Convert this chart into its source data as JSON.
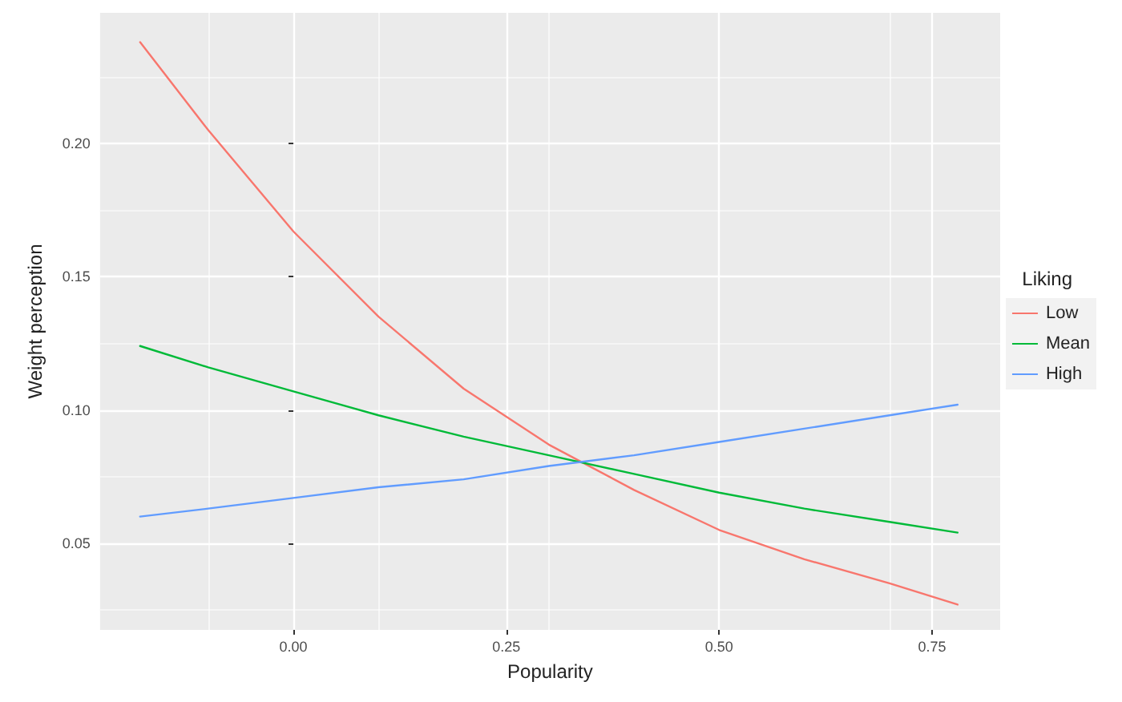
{
  "chart_data": {
    "type": "line",
    "xlabel": "Popularity",
    "ylabel": "Weight perception",
    "legend_title": "Liking",
    "legend": "right",
    "grid": true,
    "marker": "none",
    "line_style": "solid",
    "x": [
      -0.18,
      -0.1,
      0,
      0.1,
      0.2,
      0.3,
      0.4,
      0.5,
      0.6,
      0.7,
      0.78
    ],
    "xlim": [
      -0.227,
      0.83
    ],
    "ylim": [
      0.0175,
      0.249
    ],
    "xticks": [
      {
        "value": 0,
        "label": "0.00"
      },
      {
        "value": 0.25,
        "label": "0.25"
      },
      {
        "value": 0.5,
        "label": "0.50"
      },
      {
        "value": 0.75,
        "label": "0.75"
      }
    ],
    "yticks": [
      {
        "value": 0.05,
        "label": "0.05"
      },
      {
        "value": 0.1,
        "label": "0.10"
      },
      {
        "value": 0.15,
        "label": "0.15"
      },
      {
        "value": 0.2,
        "label": "0.20"
      }
    ],
    "series": [
      {
        "name": "Low",
        "color": "#f8766d",
        "values": [
          0.238,
          0.205,
          0.167,
          0.135,
          0.108,
          0.087,
          0.07,
          0.055,
          0.044,
          0.035,
          0.027
        ]
      },
      {
        "name": "Mean",
        "color": "#00ba38",
        "values": [
          0.124,
          0.116,
          0.107,
          0.098,
          0.09,
          0.083,
          0.076,
          0.069,
          0.063,
          0.058,
          0.054
        ]
      },
      {
        "name": "High",
        "color": "#619cff",
        "values": [
          0.06,
          0.063,
          0.067,
          0.071,
          0.074,
          0.079,
          0.083,
          0.088,
          0.093,
          0.098,
          0.102
        ]
      }
    ]
  }
}
